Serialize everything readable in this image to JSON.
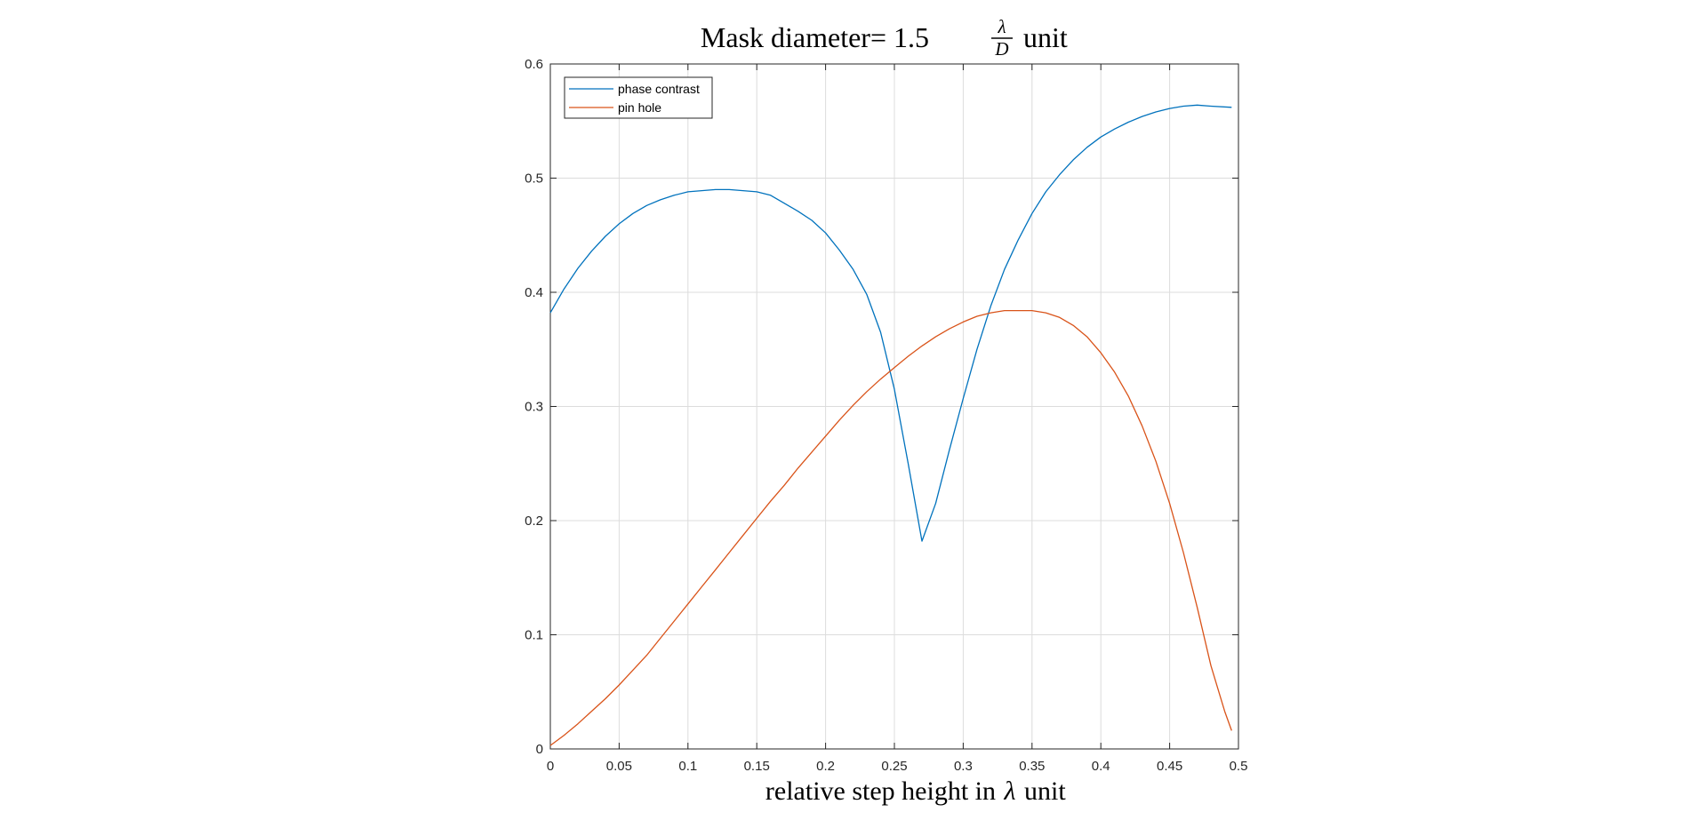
{
  "chart_data": {
    "type": "line",
    "title": {
      "prefix": "Mask diameter= 1.5",
      "frac_num": "λ",
      "frac_den": "D",
      "suffix": "unit"
    },
    "xlabel": {
      "prefix": "relative step height in",
      "symbol": "λ",
      "suffix": "unit"
    },
    "ylabel": "",
    "xlim": [
      0,
      0.5
    ],
    "ylim": [
      0,
      0.6
    ],
    "x_ticks": [
      "0",
      "0.05",
      "0.1",
      "0.15",
      "0.2",
      "0.25",
      "0.3",
      "0.35",
      "0.4",
      "0.45",
      "0.5"
    ],
    "y_ticks": [
      "0",
      "0.1",
      "0.2",
      "0.3",
      "0.4",
      "0.5",
      "0.6"
    ],
    "grid": true,
    "legend_position": "top-left",
    "series": [
      {
        "name": "phase contrast",
        "color": "#0072bd",
        "points": [
          [
            0,
            0.382
          ],
          [
            0.01,
            0.403
          ],
          [
            0.02,
            0.421
          ],
          [
            0.03,
            0.436
          ],
          [
            0.04,
            0.449
          ],
          [
            0.05,
            0.46
          ],
          [
            0.06,
            0.469
          ],
          [
            0.07,
            0.476
          ],
          [
            0.08,
            0.481
          ],
          [
            0.09,
            0.485
          ],
          [
            0.1,
            0.488
          ],
          [
            0.11,
            0.489
          ],
          [
            0.12,
            0.49
          ],
          [
            0.13,
            0.49
          ],
          [
            0.14,
            0.489
          ],
          [
            0.15,
            0.488
          ],
          [
            0.16,
            0.485
          ],
          [
            0.17,
            0.478
          ],
          [
            0.18,
            0.471
          ],
          [
            0.19,
            0.463
          ],
          [
            0.2,
            0.452
          ],
          [
            0.21,
            0.437
          ],
          [
            0.22,
            0.42
          ],
          [
            0.23,
            0.398
          ],
          [
            0.24,
            0.365
          ],
          [
            0.25,
            0.315
          ],
          [
            0.26,
            0.25
          ],
          [
            0.27,
            0.182
          ],
          [
            0.28,
            0.215
          ],
          [
            0.29,
            0.262
          ],
          [
            0.3,
            0.307
          ],
          [
            0.31,
            0.35
          ],
          [
            0.32,
            0.388
          ],
          [
            0.33,
            0.42
          ],
          [
            0.34,
            0.446
          ],
          [
            0.35,
            0.469
          ],
          [
            0.36,
            0.488
          ],
          [
            0.37,
            0.503
          ],
          [
            0.38,
            0.516
          ],
          [
            0.39,
            0.527
          ],
          [
            0.4,
            0.536
          ],
          [
            0.41,
            0.543
          ],
          [
            0.42,
            0.549
          ],
          [
            0.43,
            0.554
          ],
          [
            0.44,
            0.558
          ],
          [
            0.45,
            0.561
          ],
          [
            0.46,
            0.563
          ],
          [
            0.47,
            0.564
          ],
          [
            0.48,
            0.563
          ],
          [
            0.495,
            0.562
          ]
        ]
      },
      {
        "name": "pin hole",
        "color": "#d95319",
        "points": [
          [
            0,
            0.003
          ],
          [
            0.01,
            0.012
          ],
          [
            0.02,
            0.022
          ],
          [
            0.03,
            0.033
          ],
          [
            0.04,
            0.044
          ],
          [
            0.05,
            0.056
          ],
          [
            0.06,
            0.069
          ],
          [
            0.07,
            0.082
          ],
          [
            0.08,
            0.097
          ],
          [
            0.09,
            0.112
          ],
          [
            0.1,
            0.127
          ],
          [
            0.11,
            0.142
          ],
          [
            0.12,
            0.157
          ],
          [
            0.13,
            0.172
          ],
          [
            0.14,
            0.187
          ],
          [
            0.15,
            0.202
          ],
          [
            0.16,
            0.217
          ],
          [
            0.17,
            0.231
          ],
          [
            0.18,
            0.246
          ],
          [
            0.19,
            0.26
          ],
          [
            0.2,
            0.274
          ],
          [
            0.21,
            0.288
          ],
          [
            0.22,
            0.301
          ],
          [
            0.23,
            0.313
          ],
          [
            0.24,
            0.324
          ],
          [
            0.25,
            0.334
          ],
          [
            0.26,
            0.344
          ],
          [
            0.27,
            0.353
          ],
          [
            0.28,
            0.361
          ],
          [
            0.29,
            0.368
          ],
          [
            0.3,
            0.374
          ],
          [
            0.31,
            0.379
          ],
          [
            0.32,
            0.382
          ],
          [
            0.33,
            0.384
          ],
          [
            0.34,
            0.384
          ],
          [
            0.35,
            0.384
          ],
          [
            0.36,
            0.382
          ],
          [
            0.37,
            0.378
          ],
          [
            0.38,
            0.371
          ],
          [
            0.39,
            0.361
          ],
          [
            0.4,
            0.347
          ],
          [
            0.41,
            0.33
          ],
          [
            0.42,
            0.309
          ],
          [
            0.43,
            0.283
          ],
          [
            0.44,
            0.252
          ],
          [
            0.45,
            0.215
          ],
          [
            0.46,
            0.172
          ],
          [
            0.47,
            0.124
          ],
          [
            0.48,
            0.073
          ],
          [
            0.49,
            0.033
          ],
          [
            0.495,
            0.016
          ]
        ]
      }
    ]
  }
}
